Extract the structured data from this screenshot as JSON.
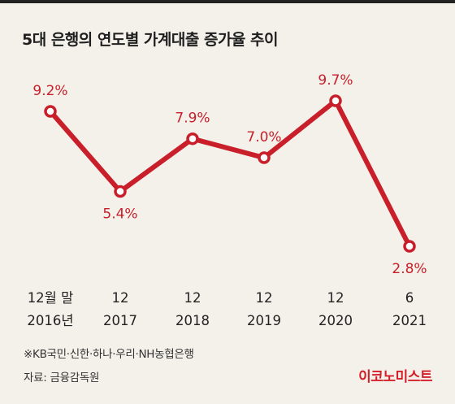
{
  "title": "5대 은행의 연도별 가계대출 증가율 추이",
  "note": "※KB국민·신한·하나·우리·NH농협은행",
  "source": "자료: 금융감독원",
  "brand": "이코노미스트",
  "colors": {
    "line": "#c81f2b",
    "label": "#c81f2b",
    "background": "#f3f1ea",
    "text": "#222222"
  },
  "chart_data": {
    "type": "line",
    "title": "5대 은행의 연도별 가계대출 증가율 추이",
    "categories": [
      [
        "12월 말",
        "2016년"
      ],
      [
        "12",
        "2017"
      ],
      [
        "12",
        "2018"
      ],
      [
        "12",
        "2019"
      ],
      [
        "12",
        "2020"
      ],
      [
        "6",
        "2021"
      ]
    ],
    "values": [
      9.2,
      5.4,
      7.9,
      7.0,
      9.7,
      2.8
    ],
    "data_labels": [
      "9.2%",
      "5.4%",
      "7.9%",
      "7.0%",
      "9.7%",
      "2.8%"
    ],
    "label_positions": [
      "above",
      "below",
      "above",
      "above",
      "above",
      "below"
    ],
    "unit": "%",
    "grid": false,
    "legend": "none"
  }
}
